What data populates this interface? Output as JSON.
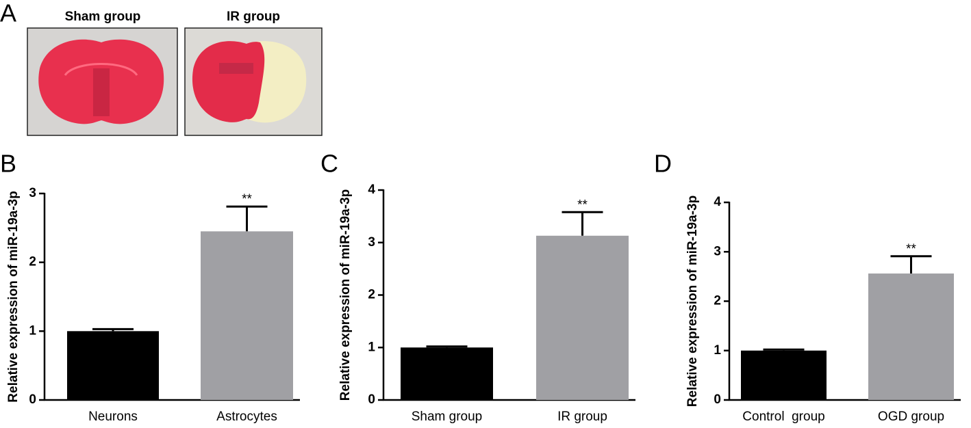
{
  "panel_a": {
    "panel": "A",
    "images": [
      {
        "label": "Sham group"
      },
      {
        "label": "IR group"
      }
    ]
  },
  "chart_data": [
    {
      "type": "bar",
      "panel": "B",
      "ylabel": "Relative expression of miR-19a-3p",
      "categories": [
        "Neurons",
        "Astrocytes"
      ],
      "values": [
        1.0,
        2.45
      ],
      "errors": [
        0.03,
        0.36
      ],
      "colors": [
        "#000000",
        "#a0a0a4"
      ],
      "ylim": [
        0,
        3
      ],
      "yticks": [
        0,
        1,
        2,
        3
      ],
      "significance": {
        "index": 1,
        "label": "**"
      }
    },
    {
      "type": "bar",
      "panel": "C",
      "ylabel": "Relative expression of miR-19a-3p",
      "categories": [
        "Sham group",
        "IR group"
      ],
      "values": [
        1.0,
        3.13
      ],
      "errors": [
        0.02,
        0.45
      ],
      "colors": [
        "#000000",
        "#a0a0a4"
      ],
      "ylim": [
        0,
        4
      ],
      "yticks": [
        0,
        1,
        2,
        3,
        4
      ],
      "significance": {
        "index": 1,
        "label": "**"
      }
    },
    {
      "type": "bar",
      "panel": "D",
      "ylabel": "Relative expression of miR-19a-3p",
      "categories": [
        "Control  group",
        "OGD group"
      ],
      "values": [
        1.0,
        2.56
      ],
      "errors": [
        0.02,
        0.35
      ],
      "colors": [
        "#000000",
        "#a0a0a4"
      ],
      "ylim": [
        0,
        4
      ],
      "yticks": [
        0,
        1,
        2,
        3,
        4
      ],
      "significance": {
        "index": 1,
        "label": "**"
      }
    }
  ]
}
